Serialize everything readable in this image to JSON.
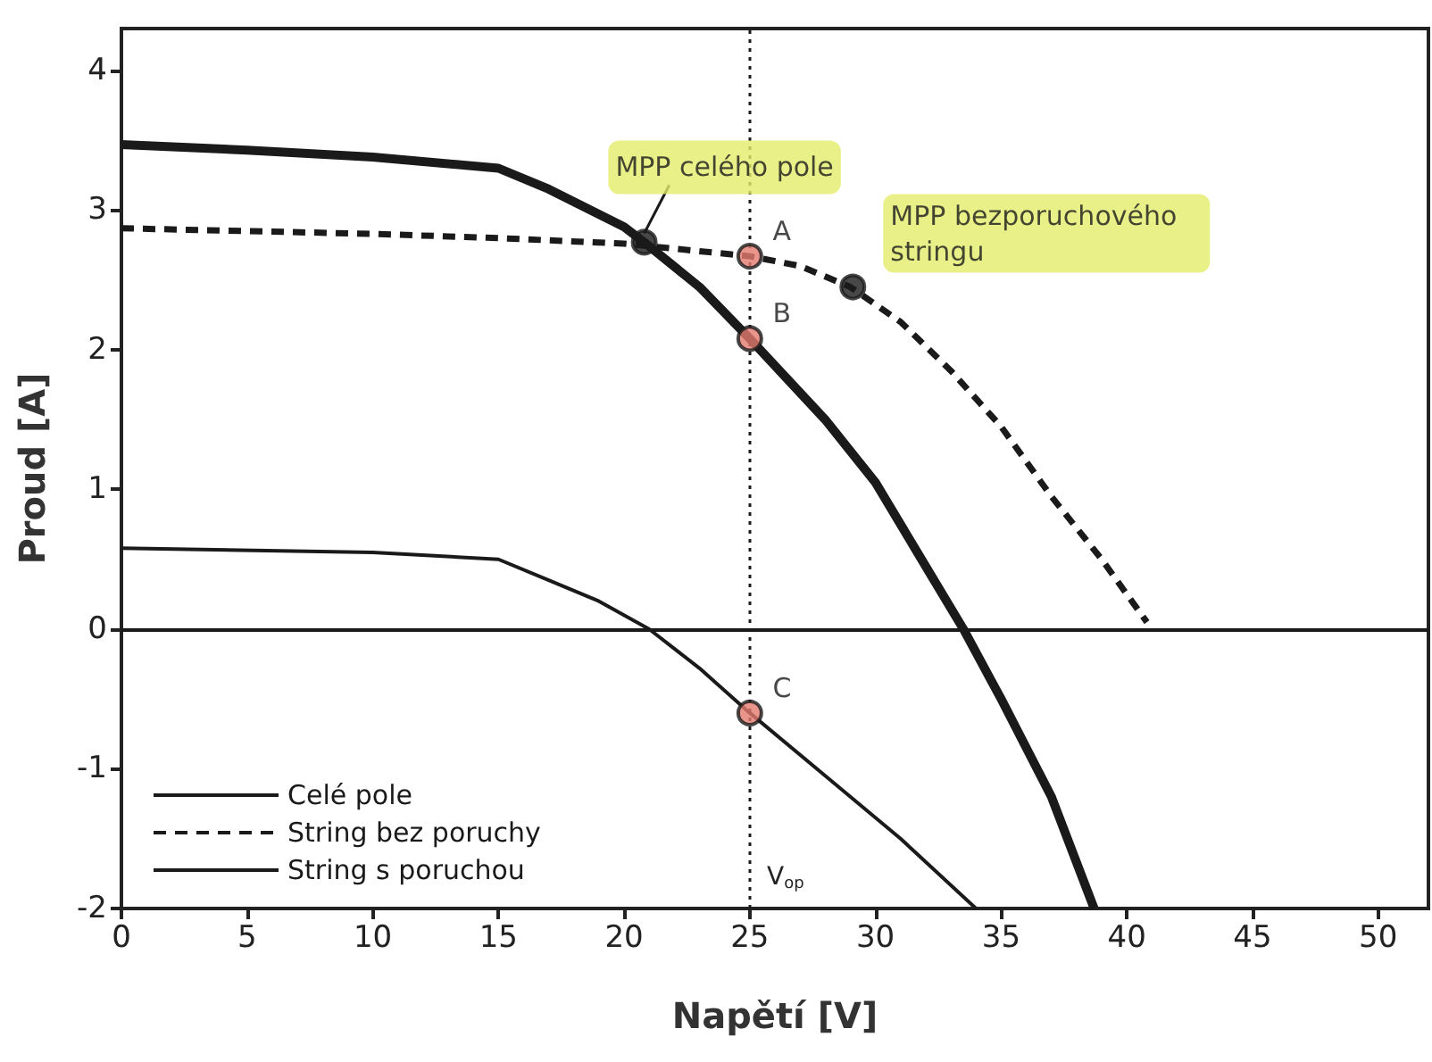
{
  "chart_data": {
    "type": "line",
    "xlabel": "Napětí [V]",
    "ylabel": "Proud [A]",
    "xlim": [
      0,
      52
    ],
    "xticks": [
      0,
      5,
      10,
      15,
      20,
      25,
      30,
      35,
      40,
      45,
      50
    ],
    "ylim": [
      -2,
      4.3
    ],
    "yticks": [
      -2,
      -1,
      0,
      1,
      2,
      3,
      4
    ],
    "grid": false,
    "legend": "bottom left",
    "marker": "none",
    "series": [
      {
        "name": "Celé pole",
        "color": "#1a1a1a",
        "line_style": "solid",
        "x": [
          0,
          5,
          10,
          15,
          17,
          20,
          20.8,
          23,
          25,
          28,
          30,
          32,
          33.5,
          35,
          37,
          38.7
        ],
        "values": [
          3.47,
          3.43,
          3.38,
          3.3,
          3.15,
          2.88,
          2.77,
          2.45,
          2.08,
          1.5,
          1.05,
          0.45,
          0,
          -0.5,
          -1.2,
          -2
        ]
      },
      {
        "name": "String bez poruchy",
        "color": "#1a1a1a",
        "line_style": "dashed",
        "x": [
          0,
          10,
          15,
          20,
          25,
          27,
          29,
          31,
          33,
          35,
          37,
          39,
          40.8
        ],
        "values": [
          2.87,
          2.83,
          2.8,
          2.76,
          2.67,
          2.6,
          2.45,
          2.2,
          1.85,
          1.45,
          0.95,
          0.5,
          0.05
        ]
      },
      {
        "name": "String s poruchou",
        "color": "#1a1a1a",
        "line_style": "solid",
        "x": [
          0,
          10,
          15,
          17,
          19,
          21,
          23,
          25,
          28,
          31,
          34
        ],
        "values": [
          0.58,
          0.55,
          0.5,
          0.35,
          0.2,
          0,
          -0.28,
          -0.6,
          -1.05,
          -1.5,
          -2
        ]
      },
      {
        "type": "scatter",
        "marker": "circle",
        "color": "#1a1a1a",
        "x": [
          20.8,
          29.1
        ],
        "values": [
          2.77,
          2.45
        ]
      },
      {
        "type": "scatter",
        "marker": "circle",
        "color": "#e47b6e",
        "x": [
          25,
          25,
          25
        ],
        "values": [
          2.67,
          2.08,
          -0.6
        ]
      }
    ],
    "ref_lines": [
      {
        "axis": "x",
        "value": 25,
        "label": "V$_{op}$",
        "line_style": "dotted"
      },
      {
        "axis": "y",
        "value": 0,
        "line_style": "solid"
      }
    ],
    "annotations": [
      {
        "text": "MPP celého pole",
        "x": 20.8,
        "y": 2.77
      },
      {
        "text": "MPP bezporuchového stringu",
        "x": 29.1,
        "y": 2.45
      },
      {
        "text": "A",
        "x": 25,
        "y": 2.67
      },
      {
        "text": "B",
        "x": 25,
        "y": 2.08
      },
      {
        "text": "C",
        "x": 25,
        "y": -0.6
      }
    ]
  }
}
